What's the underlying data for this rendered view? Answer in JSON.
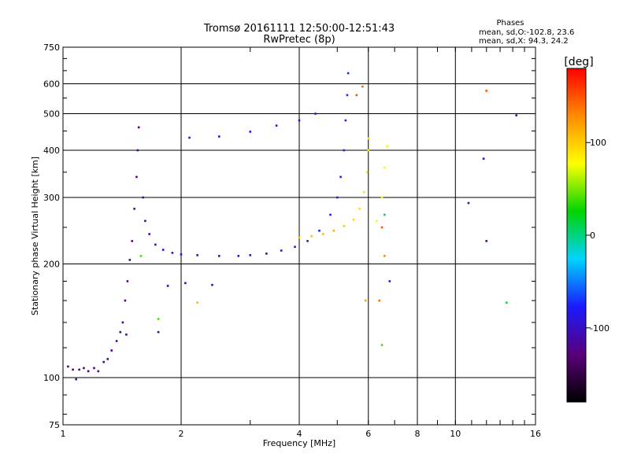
{
  "chart_data": {
    "type": "scatter",
    "title": "Tromsø 20161111 12:50:00-12:51:43",
    "subtitle": "RwPretec (8p)",
    "xlabel": "Frequency [MHz]",
    "ylabel": "Stationary phase Virtual Height [km]",
    "x_scale": "log",
    "y_scale": "log",
    "xlim": [
      1,
      16
    ],
    "ylim": [
      75,
      750
    ],
    "x_ticks": [
      1,
      2,
      4,
      6,
      8,
      10,
      16
    ],
    "y_ticks": [
      75,
      100,
      200,
      300,
      400,
      500,
      600,
      750
    ],
    "grid": true,
    "phase_box": {
      "heading": "Phases",
      "line_o": "mean, sd,O:-102.8, 23.6",
      "line_x": "mean, sd,X:  94.3, 24.2"
    },
    "colorbar": {
      "label": "[deg]",
      "range": [
        -180,
        180
      ],
      "ticks": [
        100,
        0,
        -100
      ],
      "colormap": [
        "#000000",
        "#5a007a",
        "#1a1aff",
        "#00d4ff",
        "#00d400",
        "#ffff00",
        "#ff8c00",
        "#ff0000"
      ]
    },
    "series": [
      {
        "points": [
          [
            1.03,
            107,
            -125
          ],
          [
            1.06,
            105,
            -130
          ],
          [
            1.08,
            99,
            -120
          ],
          [
            1.1,
            105,
            -128
          ],
          [
            1.13,
            106,
            -122
          ],
          [
            1.16,
            104,
            -130
          ],
          [
            1.2,
            106,
            -118
          ],
          [
            1.23,
            104,
            -125
          ],
          [
            1.27,
            110,
            -120
          ],
          [
            1.3,
            112,
            -128
          ],
          [
            1.33,
            118,
            -120
          ],
          [
            1.37,
            125,
            -115
          ],
          [
            1.4,
            132,
            -125
          ],
          [
            1.42,
            140,
            -122
          ],
          [
            1.44,
            160,
            -120
          ],
          [
            1.46,
            180,
            -128
          ],
          [
            1.48,
            205,
            -122
          ],
          [
            1.5,
            230,
            -125
          ],
          [
            1.52,
            280,
            -118
          ],
          [
            1.54,
            340,
            -126
          ],
          [
            1.55,
            400,
            -122
          ],
          [
            1.56,
            460,
            -124
          ],
          [
            1.6,
            300,
            -116
          ],
          [
            1.62,
            260,
            -112
          ],
          [
            1.66,
            240,
            -110
          ],
          [
            1.72,
            225,
            -106
          ],
          [
            1.8,
            218,
            -104
          ],
          [
            1.9,
            214,
            -102
          ],
          [
            2.0,
            212,
            -100
          ],
          [
            2.2,
            211,
            -98
          ],
          [
            2.5,
            210,
            -96
          ],
          [
            2.8,
            210,
            -95
          ],
          [
            3.0,
            211,
            -94
          ],
          [
            3.3,
            213,
            -92
          ],
          [
            3.6,
            217,
            -90
          ],
          [
            3.9,
            222,
            -88
          ],
          [
            4.2,
            230,
            -85
          ],
          [
            4.5,
            245,
            -82
          ],
          [
            4.8,
            270,
            -80
          ],
          [
            5.0,
            300,
            -78
          ],
          [
            5.1,
            340,
            -76
          ],
          [
            5.2,
            400,
            -75
          ],
          [
            5.25,
            480,
            -74
          ],
          [
            5.3,
            560,
            -73
          ],
          [
            5.33,
            640,
            -72
          ],
          [
            2.1,
            432,
            -90
          ],
          [
            2.5,
            435,
            -92
          ],
          [
            3.0,
            448,
            -90
          ],
          [
            3.5,
            465,
            -88
          ],
          [
            4.0,
            480,
            -86
          ],
          [
            4.4,
            500,
            -84
          ],
          [
            1.85,
            175,
            -110
          ],
          [
            2.05,
            178,
            -108
          ],
          [
            2.4,
            176,
            -110
          ],
          [
            1.75,
            132,
            -112
          ],
          [
            1.45,
            130,
            -118
          ],
          [
            10.8,
            290,
            -110
          ],
          [
            11.8,
            380,
            -100
          ],
          [
            12.0,
            230,
            -120
          ],
          [
            14.3,
            495,
            -108
          ],
          [
            6.8,
            180,
            -95
          ]
        ]
      },
      {
        "points": [
          [
            4.0,
            235,
            100
          ],
          [
            4.3,
            237,
            105
          ],
          [
            4.6,
            240,
            110
          ],
          [
            4.9,
            245,
            115
          ],
          [
            5.2,
            252,
            100
          ],
          [
            5.5,
            262,
            95
          ],
          [
            5.7,
            280,
            92
          ],
          [
            5.85,
            310,
            90
          ],
          [
            5.95,
            350,
            88
          ],
          [
            6.0,
            400,
            85
          ],
          [
            6.02,
            430,
            82
          ],
          [
            6.3,
            260,
            80
          ],
          [
            6.5,
            300,
            78
          ],
          [
            6.6,
            360,
            76
          ],
          [
            6.7,
            410,
            74
          ],
          [
            5.6,
            560,
            150
          ],
          [
            5.8,
            590,
            140
          ],
          [
            6.5,
            250,
            150
          ],
          [
            6.6,
            210,
            130
          ],
          [
            6.4,
            160,
            140
          ],
          [
            6.5,
            122,
            40
          ],
          [
            6.6,
            270,
            10
          ],
          [
            5.9,
            160,
            120
          ],
          [
            12.0,
            575,
            150
          ],
          [
            13.5,
            158,
            10
          ],
          [
            2.2,
            158,
            110
          ],
          [
            1.58,
            210,
            40
          ],
          [
            1.75,
            143,
            40
          ]
        ]
      }
    ]
  }
}
